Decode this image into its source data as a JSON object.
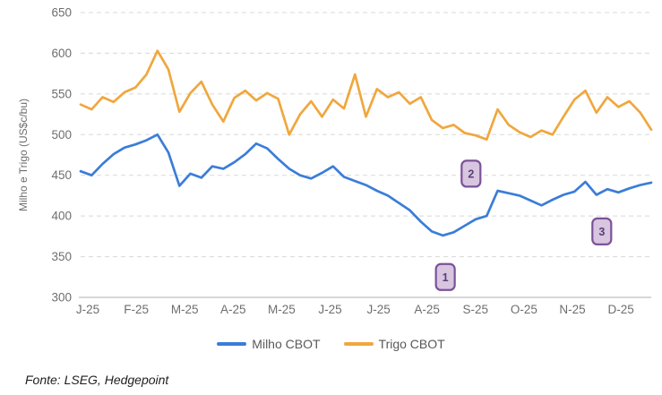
{
  "figure": {
    "source": "Fonte: LSEG, Hedgepoint"
  },
  "chart_data": {
    "type": "line",
    "title": "",
    "xlabel": "",
    "ylabel": "Milho e Trigo (US$c/bu)",
    "ylim": [
      300,
      650
    ],
    "y_tick_step": 50,
    "y_tick_labels": [
      "300",
      "350",
      "400",
      "450",
      "500",
      "550",
      "600",
      "650"
    ],
    "x_tick_labels": [
      "J-25",
      "F-25",
      "M-25",
      "A-25",
      "M-25",
      "J-25",
      "J-25",
      "A-25",
      "S-25",
      "O-25",
      "N-25",
      "D-25"
    ],
    "x_unit": "weekly samples, Jan-Dec 2025",
    "grid": "horizontal-dashed",
    "legend_position": "bottom-center",
    "axis_text_color": "#6E6E6E",
    "grid_color": "#D8D8D8",
    "axis_line_color": "#BFBFBF",
    "series": [
      {
        "name": "Milho CBOT",
        "color": "#3B7DD8",
        "values": [
          455,
          450,
          464,
          476,
          484,
          488,
          493,
          500,
          478,
          437,
          452,
          447,
          461,
          458,
          466,
          476,
          489,
          483,
          470,
          458,
          450,
          446,
          453,
          461,
          448,
          443,
          438,
          431,
          425,
          416,
          407,
          393,
          381,
          376,
          380,
          388,
          396,
          400,
          431,
          428,
          425,
          419,
          413,
          420,
          426,
          430,
          442,
          426,
          433,
          429,
          434,
          438,
          441
        ]
      },
      {
        "name": "Trigo CBOT",
        "color": "#F0A73E",
        "values": [
          537,
          531,
          546,
          540,
          552,
          558,
          574,
          603,
          580,
          528,
          551,
          565,
          537,
          516,
          545,
          554,
          542,
          551,
          544,
          500,
          525,
          541,
          522,
          543,
          532,
          574,
          522,
          556,
          546,
          552,
          538,
          546,
          518,
          508,
          512,
          502,
          499,
          494,
          531,
          512,
          503,
          497,
          505,
          500,
          522,
          543,
          554,
          527,
          546,
          534,
          541,
          527,
          506
        ]
      }
    ],
    "annotations": [
      {
        "label": "1",
        "x_month": 7.67,
        "y_value": 325
      },
      {
        "label": "2",
        "x_month": 8.21,
        "y_value": 452
      },
      {
        "label": "3",
        "x_month": 10.96,
        "y_value": 381
      }
    ],
    "annotation_style": {
      "fill": "#D8C5E0",
      "border": "#7B5299",
      "text_color": "#5C3D78"
    }
  }
}
